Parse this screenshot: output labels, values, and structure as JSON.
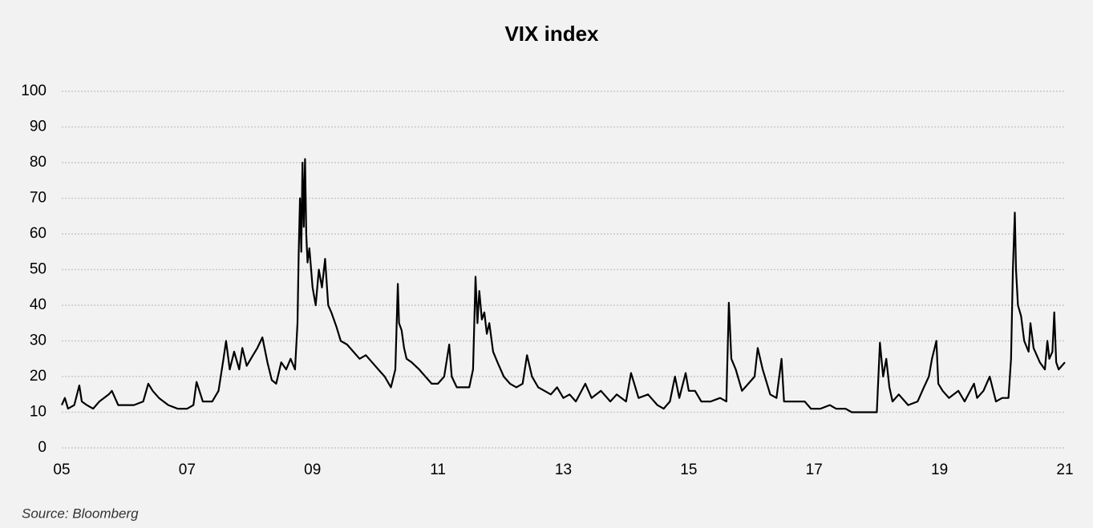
{
  "chart_data": {
    "type": "line",
    "title": "VIX index",
    "source": "Source: Bloomberg",
    "xlim": [
      2005,
      2021
    ],
    "xticks": [
      {
        "value": 2005,
        "label": "05"
      },
      {
        "value": 2007,
        "label": "07"
      },
      {
        "value": 2009,
        "label": "09"
      },
      {
        "value": 2011,
        "label": "11"
      },
      {
        "value": 2013,
        "label": "13"
      },
      {
        "value": 2015,
        "label": "15"
      },
      {
        "value": 2017,
        "label": "17"
      },
      {
        "value": 2019,
        "label": "19"
      },
      {
        "value": 2021,
        "label": "21"
      }
    ],
    "ylim": [
      0,
      100
    ],
    "yticks": [
      0,
      10,
      20,
      30,
      40,
      50,
      60,
      70,
      80,
      90,
      100
    ],
    "grid": true,
    "x": [
      2005.0,
      2005.05,
      2005.1,
      2005.2,
      2005.28,
      2005.32,
      2005.4,
      2005.5,
      2005.6,
      2005.75,
      2005.8,
      2005.9,
      2006.0,
      2006.15,
      2006.3,
      2006.38,
      2006.45,
      2006.55,
      2006.7,
      2006.85,
      2007.0,
      2007.1,
      2007.15,
      2007.25,
      2007.4,
      2007.5,
      2007.58,
      2007.62,
      2007.68,
      2007.75,
      2007.83,
      2007.88,
      2007.95,
      2008.05,
      2008.12,
      2008.2,
      2008.28,
      2008.35,
      2008.42,
      2008.5,
      2008.58,
      2008.65,
      2008.72,
      2008.76,
      2008.78,
      2008.8,
      2008.82,
      2008.84,
      2008.86,
      2008.88,
      2008.9,
      2008.92,
      2008.95,
      2009.0,
      2009.05,
      2009.1,
      2009.15,
      2009.2,
      2009.25,
      2009.3,
      2009.38,
      2009.45,
      2009.55,
      2009.65,
      2009.75,
      2009.85,
      2009.95,
      2010.05,
      2010.15,
      2010.25,
      2010.32,
      2010.36,
      2010.38,
      2010.42,
      2010.46,
      2010.5,
      2010.58,
      2010.7,
      2010.8,
      2010.9,
      2011.0,
      2011.1,
      2011.18,
      2011.22,
      2011.3,
      2011.4,
      2011.5,
      2011.56,
      2011.6,
      2011.63,
      2011.66,
      2011.7,
      2011.74,
      2011.78,
      2011.82,
      2011.88,
      2011.95,
      2012.05,
      2012.15,
      2012.25,
      2012.35,
      2012.42,
      2012.5,
      2012.6,
      2012.7,
      2012.8,
      2012.9,
      2013.0,
      2013.1,
      2013.2,
      2013.35,
      2013.45,
      2013.6,
      2013.75,
      2013.85,
      2014.0,
      2014.08,
      2014.2,
      2014.35,
      2014.5,
      2014.6,
      2014.7,
      2014.78,
      2014.85,
      2014.95,
      2015.0,
      2015.1,
      2015.2,
      2015.35,
      2015.5,
      2015.6,
      2015.64,
      2015.68,
      2015.75,
      2015.85,
      2015.95,
      2016.05,
      2016.1,
      2016.18,
      2016.3,
      2016.4,
      2016.48,
      2016.52,
      2016.6,
      2016.75,
      2016.85,
      2016.95,
      2017.1,
      2017.25,
      2017.35,
      2017.5,
      2017.6,
      2017.7,
      2017.8,
      2017.9,
      2018.0,
      2018.05,
      2018.1,
      2018.15,
      2018.2,
      2018.25,
      2018.35,
      2018.5,
      2018.65,
      2018.75,
      2018.83,
      2018.88,
      2018.95,
      2018.98,
      2019.05,
      2019.15,
      2019.3,
      2019.4,
      2019.55,
      2019.6,
      2019.7,
      2019.8,
      2019.9,
      2020.0,
      2020.1,
      2020.14,
      2020.17,
      2020.2,
      2020.22,
      2020.25,
      2020.3,
      2020.35,
      2020.42,
      2020.45,
      2020.5,
      2020.55,
      2020.6,
      2020.68,
      2020.72,
      2020.75,
      2020.8,
      2020.83,
      2020.86,
      2020.9,
      2020.95,
      2021.0
    ],
    "series": [
      {
        "name": "VIX index",
        "color": "#000000",
        "values": [
          12,
          14,
          11,
          12,
          17.5,
          13,
          12,
          11,
          13,
          15,
          16,
          12,
          12,
          12,
          13,
          18,
          16,
          14,
          12,
          11,
          11,
          12,
          18.5,
          13,
          13,
          16,
          25,
          30,
          22,
          27,
          22,
          28,
          23,
          26,
          28,
          31,
          24,
          19,
          18,
          24,
          22,
          25,
          22,
          35,
          55,
          70,
          55,
          80,
          62,
          81,
          60,
          52,
          56,
          45,
          40,
          50,
          45,
          53,
          40,
          38,
          34,
          30,
          29,
          27,
          25,
          26,
          24,
          22,
          20,
          17,
          22,
          46,
          35,
          33,
          28,
          25,
          24,
          22,
          20,
          18,
          18,
          20,
          29,
          20,
          17,
          17,
          17,
          22,
          48,
          35,
          44,
          36,
          38,
          32,
          35,
          27,
          24,
          20,
          18,
          17,
          18,
          26,
          20,
          17,
          16,
          15,
          17,
          14,
          15,
          13,
          18,
          14,
          16,
          13,
          15,
          13,
          21,
          14,
          15,
          12,
          11,
          13,
          20,
          14,
          21,
          16,
          16,
          13,
          13,
          14,
          13,
          40.7,
          25,
          22,
          16,
          18,
          20,
          28,
          22,
          15,
          14,
          25,
          13,
          13,
          13,
          13,
          11,
          11,
          12,
          11,
          11,
          10,
          10,
          10,
          10,
          10,
          29.5,
          20,
          25,
          17,
          13,
          15,
          12,
          13,
          17,
          20,
          25,
          30,
          18,
          16,
          14,
          16,
          13,
          18,
          14,
          16,
          20,
          13,
          14,
          14,
          25,
          50,
          66,
          50,
          40,
          37,
          30,
          27,
          35,
          28,
          26,
          24,
          22,
          30,
          25,
          27,
          38,
          24,
          22,
          23,
          24
        ]
      }
    ]
  }
}
